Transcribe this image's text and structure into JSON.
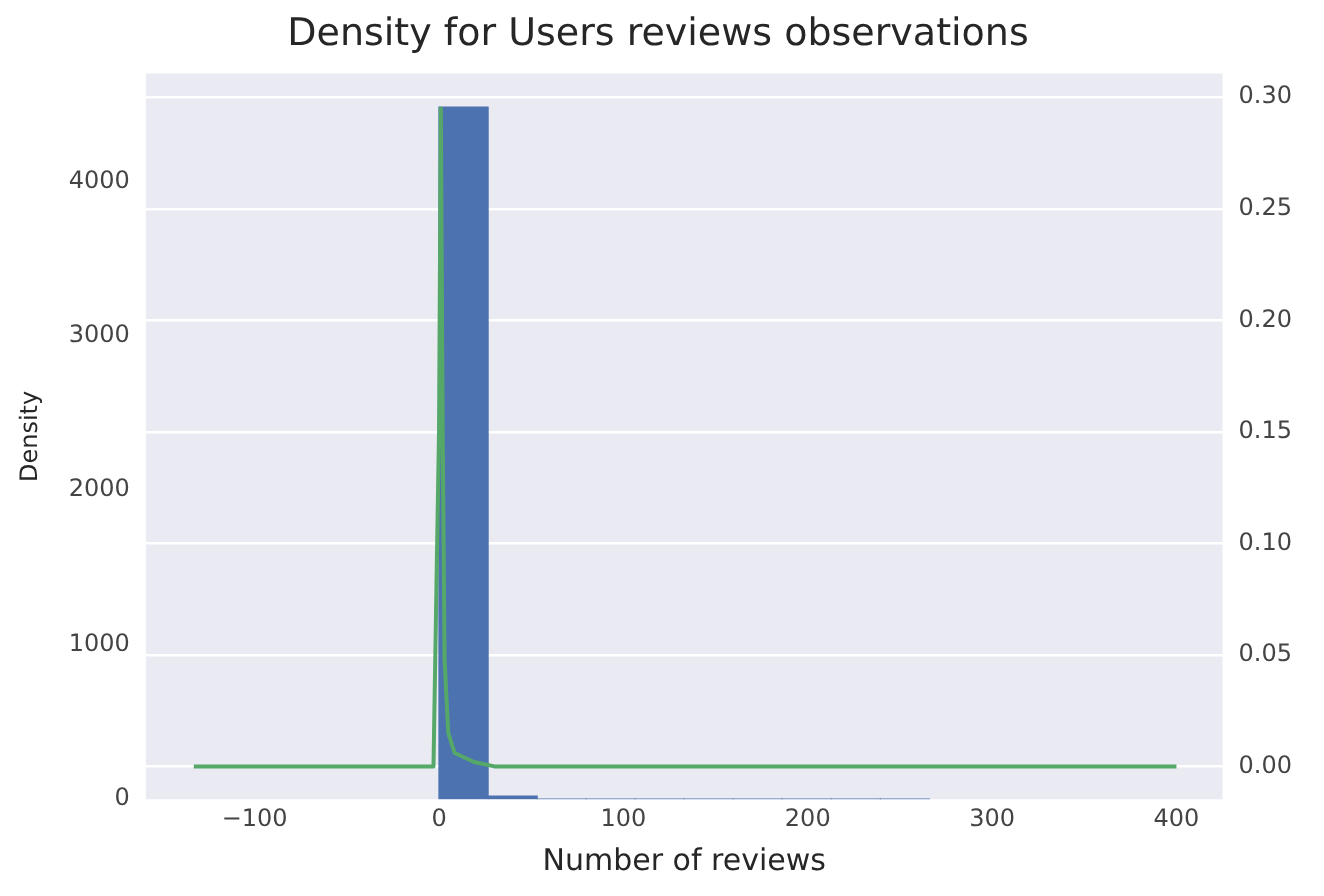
{
  "chart_data": {
    "type": "histogram",
    "title": "Density for Users reviews observations",
    "xlabel": "Number of reviews",
    "ylabel": "Density",
    "bins": [
      0,
      26.6,
      53.2,
      79.8,
      106.4,
      133,
      159.6,
      186.2,
      212.8,
      239.4,
      266
    ],
    "values": [
      4480,
      20,
      0,
      0,
      0,
      0,
      0,
      0,
      0,
      0
    ],
    "color": "#4c72b0",
    "series": [
      {
        "type": "line",
        "axis": "y2",
        "color": "#55a868",
        "x": [
          -133,
          -3,
          0,
          1,
          2,
          3,
          5,
          8.5,
          19,
          30,
          400
        ],
        "values": [
          0,
          0,
          0.15,
          0.295,
          0.15,
          0.048,
          0.015,
          0.006,
          0.002,
          0,
          0
        ]
      }
    ],
    "xlim": [
      -159,
      425
    ],
    "xticks": [
      {
        "value": -100,
        "label": "−100"
      },
      0,
      100,
      200,
      300,
      400
    ],
    "ylim": [
      0,
      4697
    ],
    "yticks": [
      0,
      1000,
      2000,
      3000,
      4000
    ],
    "y2lim": [
      -0.0147,
      0.3106
    ],
    "y2ticks": [
      {
        "value": 0,
        "label": "0.00"
      },
      {
        "value": 0.05,
        "label": "0.05"
      },
      {
        "value": 0.1,
        "label": "0.10"
      },
      {
        "value": 0.15,
        "label": "0.15"
      },
      {
        "value": 0.2,
        "label": "0.20"
      },
      {
        "value": 0.25,
        "label": "0.25"
      },
      {
        "value": 0.3,
        "label": "0.30"
      }
    ],
    "grid": "y",
    "legend": false,
    "marker": "none",
    "line_style": "solid"
  }
}
